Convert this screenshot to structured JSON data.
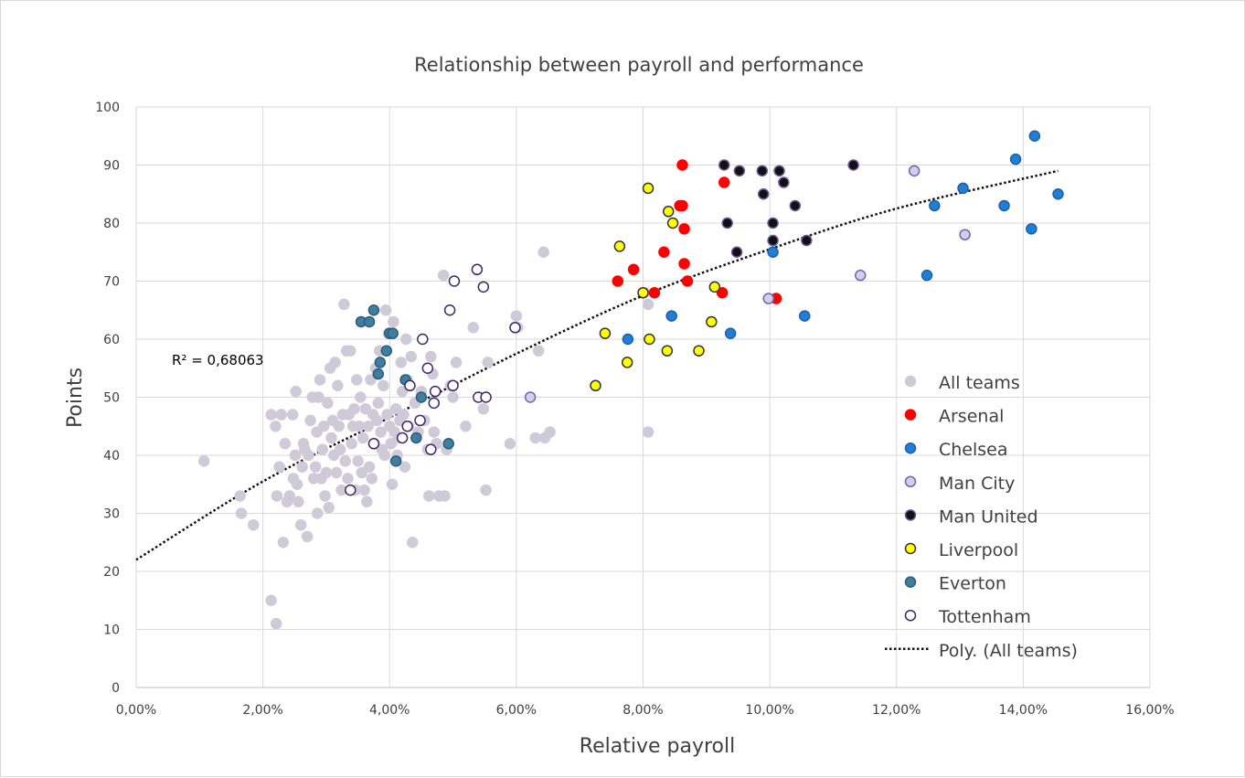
{
  "chart_data": {
    "type": "scatter",
    "title": "Relationship between payroll and performance",
    "xlabel": "Relative payroll",
    "ylabel": "Points",
    "xlim": [
      0,
      0.16
    ],
    "ylim": [
      0,
      100
    ],
    "x_ticks": [
      0,
      0.02,
      0.04,
      0.06,
      0.08,
      0.1,
      0.12,
      0.14,
      0.16
    ],
    "x_tick_labels": [
      "0,00%",
      "2,00%",
      "4,00%",
      "6,00%",
      "8,00%",
      "10,00%",
      "12,00%",
      "14,00%",
      "16,00%"
    ],
    "y_ticks": [
      0,
      10,
      20,
      30,
      40,
      50,
      60,
      70,
      80,
      90,
      100
    ],
    "y_tick_labels": [
      "0",
      "10",
      "20",
      "30",
      "40",
      "50",
      "60",
      "70",
      "80",
      "90",
      "100"
    ],
    "grid": true,
    "legend_position": "right",
    "r2_label": "R² = 0,68063",
    "trendline": {
      "name": "Poly. (All teams)",
      "type": "polynomial",
      "points": [
        [
          0,
          22
        ],
        [
          0.02,
          35.5
        ],
        [
          0.04,
          46.5
        ],
        [
          0.06,
          57.5
        ],
        [
          0.08,
          67.5
        ],
        [
          0.1,
          75.5
        ],
        [
          0.12,
          82.5
        ],
        [
          0.1455,
          89
        ]
      ]
    },
    "series": [
      {
        "name": "All teams",
        "fill": "#cfcad8",
        "stroke": "#cfcad8",
        "points": [
          [
            0.0107,
            39
          ],
          [
            0.0164,
            33
          ],
          [
            0.0166,
            30
          ],
          [
            0.0185,
            28
          ],
          [
            0.0213,
            47
          ],
          [
            0.0213,
            15
          ],
          [
            0.0221,
            11
          ],
          [
            0.022,
            45
          ],
          [
            0.0222,
            33
          ],
          [
            0.0226,
            38
          ],
          [
            0.0229,
            47
          ],
          [
            0.0232,
            25
          ],
          [
            0.0235,
            42
          ],
          [
            0.0238,
            32
          ],
          [
            0.0242,
            33
          ],
          [
            0.0247,
            47
          ],
          [
            0.0248,
            36
          ],
          [
            0.0251,
            40
          ],
          [
            0.0252,
            51
          ],
          [
            0.0254,
            35
          ],
          [
            0.0256,
            32
          ],
          [
            0.026,
            28
          ],
          [
            0.0262,
            38
          ],
          [
            0.0264,
            42
          ],
          [
            0.0266,
            41
          ],
          [
            0.027,
            26
          ],
          [
            0.0272,
            40
          ],
          [
            0.0275,
            46
          ],
          [
            0.0278,
            50
          ],
          [
            0.028,
            36
          ],
          [
            0.0283,
            38
          ],
          [
            0.0285,
            44
          ],
          [
            0.0286,
            30
          ],
          [
            0.0288,
            50
          ],
          [
            0.029,
            53
          ],
          [
            0.0292,
            36
          ],
          [
            0.0294,
            41
          ],
          [
            0.0296,
            45
          ],
          [
            0.0298,
            33
          ],
          [
            0.03,
            37
          ],
          [
            0.0302,
            49
          ],
          [
            0.0304,
            31
          ],
          [
            0.0306,
            55
          ],
          [
            0.0308,
            43
          ],
          [
            0.031,
            46
          ],
          [
            0.0312,
            40
          ],
          [
            0.0314,
            56
          ],
          [
            0.0316,
            37
          ],
          [
            0.0318,
            52
          ],
          [
            0.032,
            45
          ],
          [
            0.0322,
            41
          ],
          [
            0.0324,
            34
          ],
          [
            0.0326,
            47
          ],
          [
            0.0328,
            66
          ],
          [
            0.033,
            39
          ],
          [
            0.0332,
            58
          ],
          [
            0.0334,
            36
          ],
          [
            0.0336,
            47
          ],
          [
            0.0338,
            58
          ],
          [
            0.034,
            42
          ],
          [
            0.0342,
            45
          ],
          [
            0.0344,
            48
          ],
          [
            0.0346,
            34
          ],
          [
            0.0348,
            53
          ],
          [
            0.035,
            39
          ],
          [
            0.0352,
            45
          ],
          [
            0.0354,
            50
          ],
          [
            0.0356,
            37
          ],
          [
            0.0358,
            43
          ],
          [
            0.036,
            34
          ],
          [
            0.0362,
            48
          ],
          [
            0.0364,
            32
          ],
          [
            0.0366,
            45
          ],
          [
            0.0368,
            38
          ],
          [
            0.037,
            53
          ],
          [
            0.0372,
            36
          ],
          [
            0.0374,
            47
          ],
          [
            0.0376,
            42
          ],
          [
            0.0378,
            55
          ],
          [
            0.038,
            46
          ],
          [
            0.0382,
            49
          ],
          [
            0.0384,
            58
          ],
          [
            0.0386,
            44
          ],
          [
            0.0388,
            41
          ],
          [
            0.039,
            52
          ],
          [
            0.0392,
            40
          ],
          [
            0.0394,
            65
          ],
          [
            0.0396,
            47
          ],
          [
            0.0398,
            61
          ],
          [
            0.04,
            45
          ],
          [
            0.0402,
            42
          ],
          [
            0.0404,
            35
          ],
          [
            0.0406,
            63
          ],
          [
            0.0408,
            44
          ],
          [
            0.041,
            48
          ],
          [
            0.0412,
            40
          ],
          [
            0.0414,
            43
          ],
          [
            0.0416,
            46
          ],
          [
            0.0418,
            56
          ],
          [
            0.042,
            51
          ],
          [
            0.0422,
            47
          ],
          [
            0.0424,
            38
          ],
          [
            0.0426,
            60
          ],
          [
            0.0428,
            53
          ],
          [
            0.043,
            45
          ],
          [
            0.0434,
            57
          ],
          [
            0.0436,
            25
          ],
          [
            0.044,
            49
          ],
          [
            0.0445,
            44
          ],
          [
            0.045,
            51
          ],
          [
            0.0455,
            46
          ],
          [
            0.046,
            41
          ],
          [
            0.0462,
            33
          ],
          [
            0.0465,
            57
          ],
          [
            0.0468,
            54
          ],
          [
            0.047,
            44
          ],
          [
            0.0474,
            42
          ],
          [
            0.0478,
            33
          ],
          [
            0.0485,
            71
          ],
          [
            0.0487,
            33
          ],
          [
            0.049,
            41
          ],
          [
            0.0496,
            52
          ],
          [
            0.05,
            50
          ],
          [
            0.0505,
            56
          ],
          [
            0.052,
            45
          ],
          [
            0.0532,
            62
          ],
          [
            0.0548,
            48
          ],
          [
            0.0552,
            34
          ],
          [
            0.0555,
            56
          ],
          [
            0.059,
            42
          ],
          [
            0.06,
            64
          ],
          [
            0.0602,
            62
          ],
          [
            0.063,
            43
          ],
          [
            0.0635,
            58
          ],
          [
            0.0643,
            75
          ],
          [
            0.0645,
            43
          ],
          [
            0.0653,
            44
          ],
          [
            0.0802,
            68
          ],
          [
            0.0808,
            66
          ],
          [
            0.0808,
            44
          ]
        ]
      },
      {
        "name": "Arsenal",
        "fill": "#ff0000",
        "stroke": "#ff0000",
        "points": [
          [
            0.076,
            70
          ],
          [
            0.0785,
            72
          ],
          [
            0.0818,
            68
          ],
          [
            0.0833,
            75
          ],
          [
            0.0858,
            83
          ],
          [
            0.0862,
            90
          ],
          [
            0.0862,
            83
          ],
          [
            0.0865,
            79
          ],
          [
            0.0865,
            73
          ],
          [
            0.087,
            70
          ],
          [
            0.0925,
            68
          ],
          [
            0.0928,
            87
          ],
          [
            0.101,
            67
          ]
        ]
      },
      {
        "name": "Chelsea",
        "fill": "#1f7fd4",
        "stroke": "#1f5fa8",
        "points": [
          [
            0.0776,
            60
          ],
          [
            0.0845,
            64
          ],
          [
            0.0938,
            61
          ],
          [
            0.1005,
            75
          ],
          [
            0.1055,
            64
          ],
          [
            0.1248,
            71
          ],
          [
            0.126,
            83
          ],
          [
            0.1305,
            86
          ],
          [
            0.137,
            83
          ],
          [
            0.1388,
            91
          ],
          [
            0.1413,
            79
          ],
          [
            0.1418,
            95
          ],
          [
            0.1455,
            85
          ]
        ]
      },
      {
        "name": "Man City",
        "fill": "#cfcfee",
        "stroke": "#7464a8",
        "points": [
          [
            0.0622,
            50
          ],
          [
            0.0998,
            67
          ],
          [
            0.1143,
            71
          ],
          [
            0.1228,
            89
          ],
          [
            0.1308,
            78
          ]
        ]
      },
      {
        "name": "Man United",
        "fill": "#111111",
        "stroke": "#6a5a9a",
        "points": [
          [
            0.0928,
            90
          ],
          [
            0.0933,
            80
          ],
          [
            0.0948,
            75
          ],
          [
            0.0952,
            89
          ],
          [
            0.0988,
            89
          ],
          [
            0.099,
            85
          ],
          [
            0.1005,
            77
          ],
          [
            0.1005,
            80
          ],
          [
            0.1015,
            89
          ],
          [
            0.1022,
            87
          ],
          [
            0.104,
            83
          ],
          [
            0.1058,
            77
          ],
          [
            0.1132,
            90
          ]
        ]
      },
      {
        "name": "Liverpool",
        "fill": "#ffff00",
        "stroke": "#333333",
        "points": [
          [
            0.0725,
            52
          ],
          [
            0.074,
            61
          ],
          [
            0.0763,
            76
          ],
          [
            0.0775,
            56
          ],
          [
            0.08,
            68
          ],
          [
            0.0808,
            86
          ],
          [
            0.081,
            60
          ],
          [
            0.0838,
            58
          ],
          [
            0.084,
            82
          ],
          [
            0.0847,
            80
          ],
          [
            0.0888,
            58
          ],
          [
            0.0908,
            63
          ],
          [
            0.0913,
            69
          ]
        ]
      },
      {
        "name": "Everton",
        "fill": "#3d7fa0",
        "stroke": "#305a78",
        "points": [
          [
            0.0355,
            63
          ],
          [
            0.0368,
            63
          ],
          [
            0.0375,
            65
          ],
          [
            0.0382,
            54
          ],
          [
            0.0385,
            56
          ],
          [
            0.0395,
            58
          ],
          [
            0.04,
            61
          ],
          [
            0.0405,
            61
          ],
          [
            0.041,
            39
          ],
          [
            0.0425,
            53
          ],
          [
            0.0442,
            43
          ],
          [
            0.045,
            50
          ],
          [
            0.0493,
            42
          ]
        ]
      },
      {
        "name": "Tottenham",
        "fill": "#ffffff",
        "stroke": "#3a2a6a",
        "points": [
          [
            0.0338,
            34
          ],
          [
            0.0375,
            42
          ],
          [
            0.042,
            43
          ],
          [
            0.0428,
            45
          ],
          [
            0.0432,
            52
          ],
          [
            0.0448,
            46
          ],
          [
            0.0452,
            60
          ],
          [
            0.046,
            55
          ],
          [
            0.0465,
            41
          ],
          [
            0.047,
            49
          ],
          [
            0.0472,
            51
          ],
          [
            0.0495,
            65
          ],
          [
            0.05,
            52
          ],
          [
            0.0502,
            70
          ],
          [
            0.0538,
            72
          ],
          [
            0.054,
            50
          ],
          [
            0.0548,
            69
          ],
          [
            0.0552,
            50
          ],
          [
            0.0598,
            62
          ]
        ]
      }
    ]
  }
}
